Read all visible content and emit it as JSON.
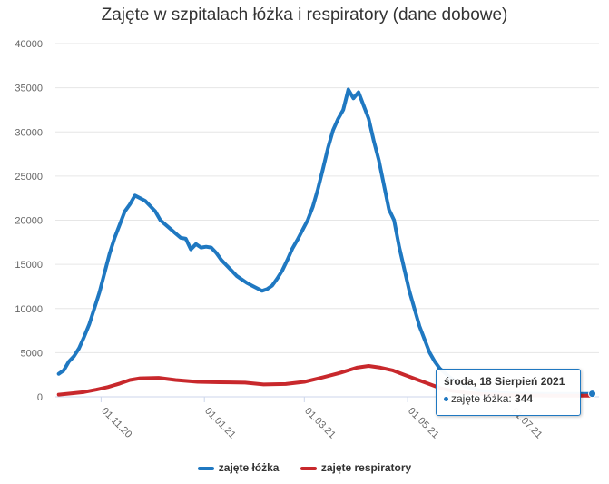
{
  "chart_data": {
    "type": "line",
    "title": "Zajęte w szpitalach łóżka i respiratory (dane dobowe)",
    "xlabel": "",
    "ylabel": "",
    "ylim": [
      0,
      40000
    ],
    "yticks": [
      0,
      5000,
      10000,
      15000,
      20000,
      25000,
      30000,
      35000,
      40000
    ],
    "xticks": [
      "01.11.20",
      "01.01.21",
      "01.03.21",
      "01.05.21",
      "01.07.21"
    ],
    "grid": true,
    "legend_position": "bottom",
    "series": [
      {
        "name": "zajęte łóżka",
        "color": "#1f78c1",
        "points": [
          [
            "2020-10-07",
            2600
          ],
          [
            "2020-10-10",
            3000
          ],
          [
            "2020-10-13",
            4000
          ],
          [
            "2020-10-16",
            4600
          ],
          [
            "2020-10-19",
            5500
          ],
          [
            "2020-10-22",
            6800
          ],
          [
            "2020-10-25",
            8200
          ],
          [
            "2020-10-28",
            10000
          ],
          [
            "2020-10-31",
            11800
          ],
          [
            "2020-11-03",
            14000
          ],
          [
            "2020-11-06",
            16200
          ],
          [
            "2020-11-09",
            18000
          ],
          [
            "2020-11-12",
            19500
          ],
          [
            "2020-11-15",
            21000
          ],
          [
            "2020-11-18",
            21800
          ],
          [
            "2020-11-21",
            22800
          ],
          [
            "2020-11-24",
            22500
          ],
          [
            "2020-11-27",
            22200
          ],
          [
            "2020-11-30",
            21600
          ],
          [
            "2020-12-03",
            21000
          ],
          [
            "2020-12-06",
            20000
          ],
          [
            "2020-12-09",
            19500
          ],
          [
            "2020-12-12",
            19000
          ],
          [
            "2020-12-15",
            18500
          ],
          [
            "2020-12-18",
            18000
          ],
          [
            "2020-12-21",
            17900
          ],
          [
            "2020-12-24",
            16700
          ],
          [
            "2020-12-27",
            17300
          ],
          [
            "2020-12-30",
            16900
          ],
          [
            "2021-01-02",
            17000
          ],
          [
            "2021-01-05",
            16900
          ],
          [
            "2021-01-08",
            16300
          ],
          [
            "2021-01-11",
            15500
          ],
          [
            "2021-01-14",
            14900
          ],
          [
            "2021-01-17",
            14300
          ],
          [
            "2021-01-20",
            13700
          ],
          [
            "2021-01-23",
            13300
          ],
          [
            "2021-01-26",
            12900
          ],
          [
            "2021-01-29",
            12600
          ],
          [
            "2021-02-01",
            12300
          ],
          [
            "2021-02-04",
            12000
          ],
          [
            "2021-02-07",
            12200
          ],
          [
            "2021-02-10",
            12600
          ],
          [
            "2021-02-13",
            13400
          ],
          [
            "2021-02-16",
            14300
          ],
          [
            "2021-02-19",
            15500
          ],
          [
            "2021-02-22",
            16800
          ],
          [
            "2021-02-25",
            17800
          ],
          [
            "2021-02-28",
            18900
          ],
          [
            "2021-03-03",
            20000
          ],
          [
            "2021-03-06",
            21500
          ],
          [
            "2021-03-09",
            23500
          ],
          [
            "2021-03-12",
            25800
          ],
          [
            "2021-03-15",
            28200
          ],
          [
            "2021-03-18",
            30200
          ],
          [
            "2021-03-21",
            31500
          ],
          [
            "2021-03-24",
            32500
          ],
          [
            "2021-03-27",
            34800
          ],
          [
            "2021-03-30",
            33800
          ],
          [
            "2021-04-02",
            34500
          ],
          [
            "2021-04-05",
            33000
          ],
          [
            "2021-04-08",
            31500
          ],
          [
            "2021-04-11",
            29000
          ],
          [
            "2021-04-14",
            26800
          ],
          [
            "2021-04-17",
            24000
          ],
          [
            "2021-04-20",
            21200
          ],
          [
            "2021-04-23",
            20000
          ],
          [
            "2021-04-26",
            17000
          ],
          [
            "2021-04-29",
            14500
          ],
          [
            "2021-05-02",
            12000
          ],
          [
            "2021-05-05",
            10000
          ],
          [
            "2021-05-08",
            8000
          ],
          [
            "2021-05-11",
            6500
          ],
          [
            "2021-05-14",
            5000
          ],
          [
            "2021-05-17",
            4000
          ],
          [
            "2021-05-20",
            3200
          ],
          [
            "2021-05-23",
            2700
          ],
          [
            "2021-05-26",
            2200
          ],
          [
            "2021-05-29",
            1800
          ],
          [
            "2021-06-01",
            1500
          ],
          [
            "2021-06-04",
            1200
          ],
          [
            "2021-06-07",
            1000
          ],
          [
            "2021-06-10",
            850
          ],
          [
            "2021-06-13",
            700
          ],
          [
            "2021-06-16",
            600
          ],
          [
            "2021-06-20",
            500
          ],
          [
            "2021-06-25",
            420
          ],
          [
            "2021-07-01",
            380
          ],
          [
            "2021-07-10",
            350
          ],
          [
            "2021-07-20",
            340
          ],
          [
            "2021-08-01",
            340
          ],
          [
            "2021-08-10",
            342
          ],
          [
            "2021-08-18",
            344
          ]
        ]
      },
      {
        "name": "zajęte respiratory",
        "color": "#c8282c",
        "points": [
          [
            "2020-10-07",
            250
          ],
          [
            "2020-10-15",
            400
          ],
          [
            "2020-10-22",
            550
          ],
          [
            "2020-10-29",
            800
          ],
          [
            "2020-11-05",
            1100
          ],
          [
            "2020-11-12",
            1500
          ],
          [
            "2020-11-18",
            1900
          ],
          [
            "2020-11-24",
            2100
          ],
          [
            "2020-12-05",
            2150
          ],
          [
            "2020-12-15",
            1900
          ],
          [
            "2020-12-28",
            1700
          ],
          [
            "2021-01-10",
            1650
          ],
          [
            "2021-01-25",
            1600
          ],
          [
            "2021-02-05",
            1400
          ],
          [
            "2021-02-18",
            1450
          ],
          [
            "2021-03-01",
            1700
          ],
          [
            "2021-03-12",
            2200
          ],
          [
            "2021-03-22",
            2700
          ],
          [
            "2021-04-01",
            3300
          ],
          [
            "2021-04-08",
            3500
          ],
          [
            "2021-04-15",
            3300
          ],
          [
            "2021-04-22",
            3000
          ],
          [
            "2021-04-29",
            2500
          ],
          [
            "2021-05-06",
            2000
          ],
          [
            "2021-05-13",
            1500
          ],
          [
            "2021-05-20",
            1000
          ],
          [
            "2021-05-27",
            700
          ],
          [
            "2021-06-05",
            450
          ],
          [
            "2021-06-15",
            300
          ],
          [
            "2021-06-28",
            200
          ],
          [
            "2021-07-10",
            150
          ],
          [
            "2021-07-25",
            130
          ],
          [
            "2021-08-18",
            120
          ]
        ]
      }
    ]
  },
  "tooltip": {
    "date": "środa, 18 Sierpień 2021",
    "series_label": "zajęte łóżka:",
    "value": "344"
  }
}
